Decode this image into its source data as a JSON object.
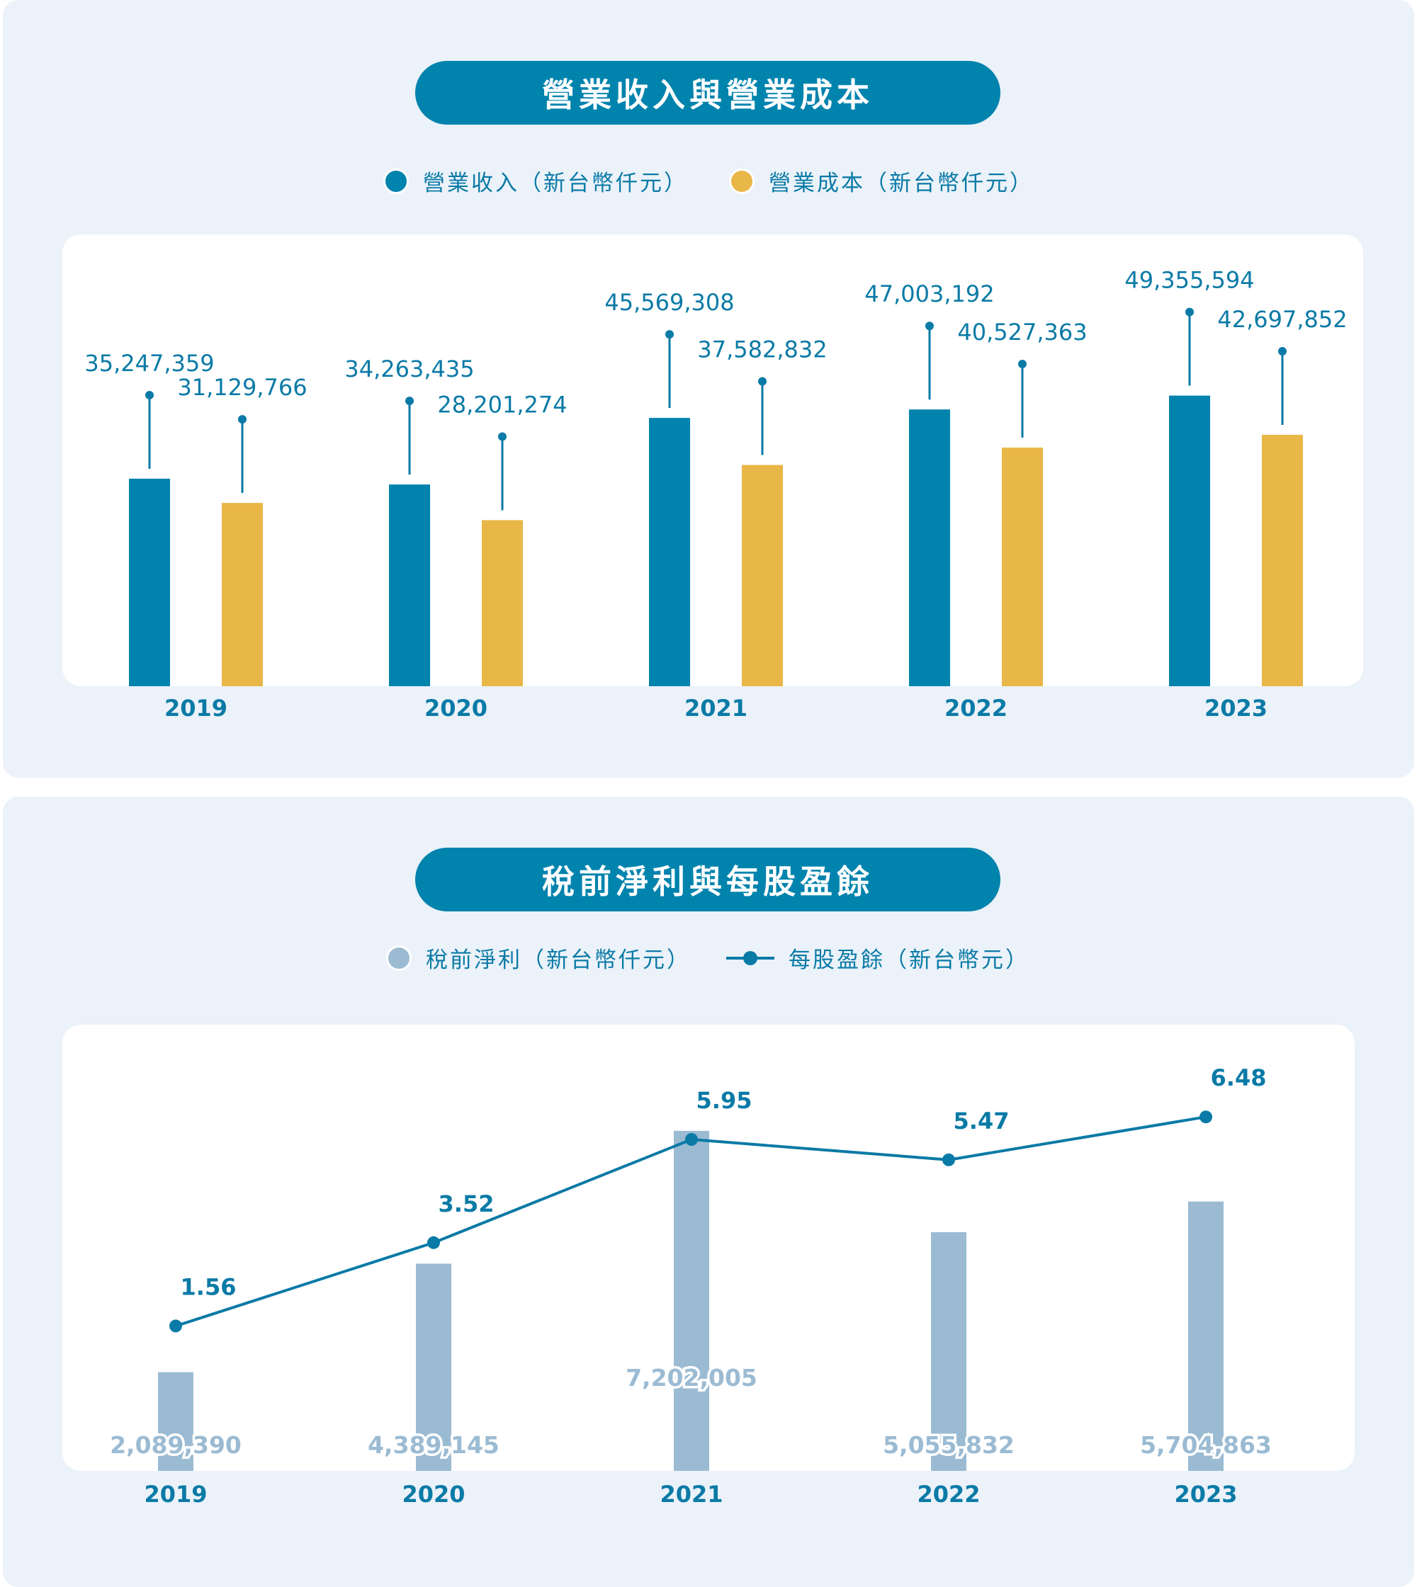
{
  "colors": {
    "revenue": "#0083ad",
    "cost": "#e9b748",
    "pretax": "#9bbbd3",
    "eps": "#0a7aa6",
    "panel": "#ebf2f9"
  },
  "chart_data": [
    {
      "type": "bar",
      "title": "營業收入與營業成本",
      "categories": [
        "2019",
        "2020",
        "2021",
        "2022",
        "2023"
      ],
      "series": [
        {
          "name": "營業收入（新台幣仟元）",
          "values": [
            35247359,
            34263435,
            45569308,
            47003192,
            49355594
          ],
          "labels": [
            "35,247,359",
            "34,263,435",
            "45,569,308",
            "47,003,192",
            "49,355,594"
          ]
        },
        {
          "name": "營業成本（新台幣仟元）",
          "values": [
            31129766,
            28201274,
            37582832,
            40527363,
            42697852
          ],
          "labels": [
            "31,129,766",
            "28,201,274",
            "37,582,832",
            "40,527,363",
            "42,697,852"
          ]
        }
      ],
      "ylim": [
        0,
        70000000
      ],
      "grid": false,
      "legend": "top-center"
    },
    {
      "type": "bar+line",
      "title": "稅前淨利與每股盈餘",
      "categories": [
        "2019",
        "2020",
        "2021",
        "2022",
        "2023"
      ],
      "series": [
        {
          "name": "稅前淨利（新台幣仟元）",
          "type": "bar",
          "values": [
            2089390,
            4389145,
            7202005,
            5055832,
            5704863
          ],
          "labels": [
            "2,089,390",
            "4,389,145",
            "7,202,005",
            "5,055,832",
            "5,704,863"
          ]
        },
        {
          "name": "每股盈餘（新台幣元）",
          "type": "line",
          "values": [
            1.56,
            3.52,
            5.95,
            5.47,
            6.48
          ],
          "labels": [
            "1.56",
            "3.52",
            "5.95",
            "5.47",
            "6.48"
          ]
        }
      ],
      "grid": false,
      "legend": "top-center"
    }
  ]
}
